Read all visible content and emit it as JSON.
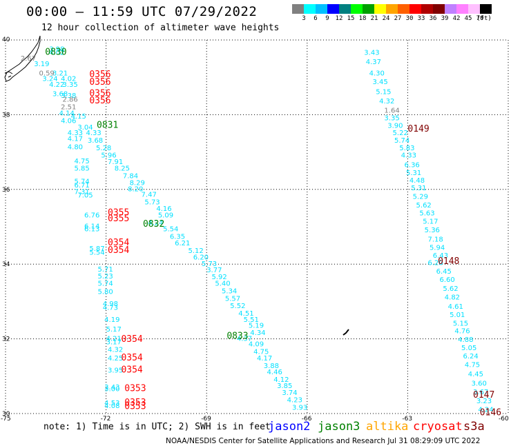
{
  "header": {
    "title": "00:00 — 11:59 UTC 07/29/2022",
    "subtitle": "12 hour collection of altimeter wave heights"
  },
  "legend": {
    "colors": [
      "#808080",
      "#00ffff",
      "#00c0ff",
      "#0000ff",
      "#008080",
      "#00ff00",
      "#00a000",
      "#ffff00",
      "#ffa500",
      "#ff6000",
      "#ff0000",
      "#b00000",
      "#800000",
      "#c080ff",
      "#ff80ff",
      "#ffc0ff",
      "#000000"
    ],
    "labels": [
      "3",
      "6",
      "9",
      "12",
      "15",
      "18",
      "21",
      "24",
      "27",
      "30",
      "33",
      "36",
      "39",
      "42",
      "45",
      "70",
      "(ft)"
    ]
  },
  "map": {
    "lat_labels": [
      "40",
      "38",
      "36",
      "34",
      "32",
      "30"
    ],
    "lon_labels": [
      "-75",
      "-72",
      "-69",
      "-66",
      "-63",
      "-60"
    ],
    "lat_range": [
      30,
      40
    ],
    "lon_range": [
      -75,
      -60
    ],
    "grid": "dotted"
  },
  "satellite_colors": {
    "jason2": "#0000ff",
    "jason3": "#008000",
    "altika": "#ffa500",
    "cryosat": "#ff0000",
    "s3a": "#800000"
  },
  "tracks": [
    {
      "sat": "jason3",
      "time": "0830",
      "lat": 39.6,
      "lon": -73.82
    },
    {
      "sat": "jason3",
      "time": "0831",
      "lat": 37.65,
      "lon": -72.28
    },
    {
      "sat": "jason3",
      "time": "0832",
      "lat": 35.0,
      "lon": -70.9
    },
    {
      "sat": "jason3",
      "time": "0833",
      "lat": 32.0,
      "lon": -68.4
    },
    {
      "sat": "cryosat",
      "time": "0356",
      "lat": 39.0,
      "lon": -72.5
    },
    {
      "sat": "cryosat",
      "time": "0356",
      "lat": 38.8,
      "lon": -72.5
    },
    {
      "sat": "cryosat",
      "time": "0356",
      "lat": 38.5,
      "lon": -72.5
    },
    {
      "sat": "cryosat",
      "time": "0356",
      "lat": 38.3,
      "lon": -72.5
    },
    {
      "sat": "cryosat",
      "time": "0355",
      "lat": 35.3,
      "lon": -71.95
    },
    {
      "sat": "cryosat",
      "time": "0355",
      "lat": 35.15,
      "lon": -71.95
    },
    {
      "sat": "cryosat",
      "time": "0354",
      "lat": 34.5,
      "lon": -71.95
    },
    {
      "sat": "cryosat",
      "time": "0354",
      "lat": 34.3,
      "lon": -71.95
    },
    {
      "sat": "cryosat",
      "time": "0354",
      "lat": 31.92,
      "lon": -71.55
    },
    {
      "sat": "cryosat",
      "time": "0354",
      "lat": 31.42,
      "lon": -71.55
    },
    {
      "sat": "cryosat",
      "time": "0354",
      "lat": 31.1,
      "lon": -71.55
    },
    {
      "sat": "cryosat",
      "time": "0353",
      "lat": 30.6,
      "lon": -71.45
    },
    {
      "sat": "cryosat",
      "time": "0353",
      "lat": 30.22,
      "lon": -71.45
    },
    {
      "sat": "cryosat",
      "time": "0353",
      "lat": 30.12,
      "lon": -71.45
    },
    {
      "sat": "s3a",
      "time": "0149",
      "lat": 37.55,
      "lon": -63.0
    },
    {
      "sat": "s3a",
      "time": "0148",
      "lat": 34.0,
      "lon": -62.1
    },
    {
      "sat": "s3a",
      "time": "0147",
      "lat": 30.42,
      "lon": -61.05
    },
    {
      "sat": "s3a",
      "time": "0146",
      "lat": 29.95,
      "lon": -60.85
    }
  ],
  "swh_points": [
    {
      "v": "3.98",
      "lat": 39.7,
      "lon": -73.7
    },
    {
      "v": "4.02",
      "lat": 39.6,
      "lon": -73.7
    },
    {
      "v": "2.67",
      "lat": 39.45,
      "lon": -74.55
    },
    {
      "v": "3.19",
      "lat": 39.3,
      "lon": -74.15
    },
    {
      "v": "0.59",
      "lat": 39.05,
      "lon": -74.0
    },
    {
      "v": "3.21",
      "lat": 39.05,
      "lon": -73.6
    },
    {
      "v": "3.24",
      "lat": 38.9,
      "lon": -73.9
    },
    {
      "v": "4.02",
      "lat": 38.9,
      "lon": -73.35
    },
    {
      "v": "4.22",
      "lat": 38.75,
      "lon": -73.7
    },
    {
      "v": "3.35",
      "lat": 38.75,
      "lon": -73.3
    },
    {
      "v": "3.68",
      "lat": 38.5,
      "lon": -73.6
    },
    {
      "v": "3.38",
      "lat": 38.45,
      "lon": -73.35
    },
    {
      "v": "2.86",
      "lat": 38.35,
      "lon": -73.3
    },
    {
      "v": "2.51",
      "lat": 38.15,
      "lon": -73.35
    },
    {
      "v": "4.14",
      "lat": 37.98,
      "lon": -73.4
    },
    {
      "v": "4.15",
      "lat": 37.9,
      "lon": -73.05
    },
    {
      "v": "4.06",
      "lat": 37.78,
      "lon": -73.35
    },
    {
      "v": "3.04",
      "lat": 37.6,
      "lon": -72.85
    },
    {
      "v": "4.33",
      "lat": 37.45,
      "lon": -73.15
    },
    {
      "v": "4.33",
      "lat": 37.45,
      "lon": -72.6
    },
    {
      "v": "4.17",
      "lat": 37.3,
      "lon": -73.15
    },
    {
      "v": "3.68",
      "lat": 37.25,
      "lon": -72.55
    },
    {
      "v": "4.80",
      "lat": 37.08,
      "lon": -73.15
    },
    {
      "v": "5.28",
      "lat": 37.05,
      "lon": -72.3
    },
    {
      "v": "5.96",
      "lat": 36.85,
      "lon": -72.15
    },
    {
      "v": "7.91",
      "lat": 36.68,
      "lon": -71.95
    },
    {
      "v": "4.75",
      "lat": 36.7,
      "lon": -72.95
    },
    {
      "v": "5.85",
      "lat": 36.5,
      "lon": -72.95
    },
    {
      "v": "8.25",
      "lat": 36.5,
      "lon": -71.75
    },
    {
      "v": "7.84",
      "lat": 36.3,
      "lon": -71.5
    },
    {
      "v": "8.29",
      "lat": 36.12,
      "lon": -71.3
    },
    {
      "v": "5.74",
      "lat": 36.15,
      "lon": -72.95
    },
    {
      "v": "6.71",
      "lat": 36.05,
      "lon": -72.95
    },
    {
      "v": "8.20",
      "lat": 35.95,
      "lon": -71.35
    },
    {
      "v": "7.31",
      "lat": 35.88,
      "lon": -72.95
    },
    {
      "v": "7.47",
      "lat": 35.8,
      "lon": -70.95
    },
    {
      "v": "7.05",
      "lat": 35.78,
      "lon": -72.85
    },
    {
      "v": "5.73",
      "lat": 35.6,
      "lon": -70.85
    },
    {
      "v": "4.16",
      "lat": 35.42,
      "lon": -70.5
    },
    {
      "v": "5.09",
      "lat": 35.25,
      "lon": -70.45
    },
    {
      "v": "6.76",
      "lat": 35.25,
      "lon": -72.65
    },
    {
      "v": "4.24",
      "lat": 35.05,
      "lon": -70.75
    },
    {
      "v": "6.14",
      "lat": 34.95,
      "lon": -72.65
    },
    {
      "v": "6.13",
      "lat": 34.88,
      "lon": -72.65
    },
    {
      "v": "5.54",
      "lat": 34.88,
      "lon": -70.3
    },
    {
      "v": "6.35",
      "lat": 34.68,
      "lon": -70.1
    },
    {
      "v": "6.21",
      "lat": 34.5,
      "lon": -69.95
    },
    {
      "v": "5.87",
      "lat": 34.35,
      "lon": -72.5
    },
    {
      "v": "5.54",
      "lat": 34.25,
      "lon": -72.5
    },
    {
      "v": "5.12",
      "lat": 34.3,
      "lon": -69.55
    },
    {
      "v": "6.20",
      "lat": 34.12,
      "lon": -69.4
    },
    {
      "v": "5.73",
      "lat": 33.95,
      "lon": -69.15
    },
    {
      "v": "3.77",
      "lat": 33.78,
      "lon": -69.0
    },
    {
      "v": "5.71",
      "lat": 33.8,
      "lon": -72.25
    },
    {
      "v": "5.92",
      "lat": 33.6,
      "lon": -68.85
    },
    {
      "v": "5.23",
      "lat": 33.62,
      "lon": -72.25
    },
    {
      "v": "5.40",
      "lat": 33.42,
      "lon": -68.75
    },
    {
      "v": "5.74",
      "lat": 33.42,
      "lon": -72.25
    },
    {
      "v": "5.34",
      "lat": 33.22,
      "lon": -68.55
    },
    {
      "v": "5.80",
      "lat": 33.2,
      "lon": -72.25
    },
    {
      "v": "5.57",
      "lat": 33.02,
      "lon": -68.45
    },
    {
      "v": "4.98",
      "lat": 32.88,
      "lon": -72.1
    },
    {
      "v": "4.73",
      "lat": 32.78,
      "lon": -72.1
    },
    {
      "v": "5.52",
      "lat": 32.82,
      "lon": -68.3
    },
    {
      "v": "4.51",
      "lat": 32.62,
      "lon": -68.05
    },
    {
      "v": "5.51",
      "lat": 32.45,
      "lon": -67.9
    },
    {
      "v": "4.19",
      "lat": 32.45,
      "lon": -72.05
    },
    {
      "v": "5.19",
      "lat": 32.3,
      "lon": -67.75
    },
    {
      "v": "5.17",
      "lat": 32.2,
      "lon": -72.0
    },
    {
      "v": "4.34",
      "lat": 32.1,
      "lon": -67.7
    },
    {
      "v": "4.21",
      "lat": 31.95,
      "lon": -72.0
    },
    {
      "v": "3.17",
      "lat": 31.85,
      "lon": -72.0
    },
    {
      "v": "4.37",
      "lat": 31.95,
      "lon": -68.1
    },
    {
      "v": "4.09",
      "lat": 31.8,
      "lon": -67.75
    },
    {
      "v": "4.75",
      "lat": 31.6,
      "lon": -67.6
    },
    {
      "v": "4.32",
      "lat": 31.65,
      "lon": -71.95
    },
    {
      "v": "4.17",
      "lat": 31.42,
      "lon": -67.5
    },
    {
      "v": "4.25",
      "lat": 31.42,
      "lon": -71.95
    },
    {
      "v": "3.88",
      "lat": 31.22,
      "lon": -67.3
    },
    {
      "v": "3.95",
      "lat": 31.1,
      "lon": -71.95
    },
    {
      "v": "4.46",
      "lat": 31.05,
      "lon": -67.2
    },
    {
      "v": "4.12",
      "lat": 30.85,
      "lon": -67.0
    },
    {
      "v": "3.85",
      "lat": 30.68,
      "lon": -66.9
    },
    {
      "v": "3.43",
      "lat": 30.65,
      "lon": -72.05
    },
    {
      "v": "3.00",
      "lat": 30.6,
      "lon": -72.05
    },
    {
      "v": "3.74",
      "lat": 30.5,
      "lon": -66.75
    },
    {
      "v": "4.53",
      "lat": 30.22,
      "lon": -72.05
    },
    {
      "v": "4.23",
      "lat": 30.3,
      "lon": -66.6
    },
    {
      "v": "4.08",
      "lat": 30.15,
      "lon": -72.05
    },
    {
      "v": "3.93",
      "lat": 30.1,
      "lon": -66.45
    },
    {
      "v": "3.43",
      "lat": 39.6,
      "lon": -64.3
    },
    {
      "v": "4.37",
      "lat": 39.35,
      "lon": -64.25
    },
    {
      "v": "4.30",
      "lat": 39.05,
      "lon": -64.15
    },
    {
      "v": "3.45",
      "lat": 38.82,
      "lon": -64.05
    },
    {
      "v": "5.15",
      "lat": 38.55,
      "lon": -63.95
    },
    {
      "v": "4.32",
      "lat": 38.3,
      "lon": -63.85
    },
    {
      "v": "1.64",
      "lat": 38.05,
      "lon": -63.7
    },
    {
      "v": "3.35",
      "lat": 37.85,
      "lon": -63.7
    },
    {
      "v": "3.90",
      "lat": 37.65,
      "lon": -63.6
    },
    {
      "v": "5.22",
      "lat": 37.45,
      "lon": -63.45
    },
    {
      "v": "5.74",
      "lat": 37.25,
      "lon": -63.4
    },
    {
      "v": "5.83",
      "lat": 37.05,
      "lon": -63.25
    },
    {
      "v": "4.33",
      "lat": 36.85,
      "lon": -63.2
    },
    {
      "v": "6.36",
      "lat": 36.6,
      "lon": -63.1
    },
    {
      "v": "5.31",
      "lat": 36.38,
      "lon": -63.05
    },
    {
      "v": "4.48",
      "lat": 36.18,
      "lon": -62.95
    },
    {
      "v": "5.31",
      "lat": 35.98,
      "lon": -62.9
    },
    {
      "v": "5.29",
      "lat": 35.75,
      "lon": -62.85
    },
    {
      "v": "5.62",
      "lat": 35.52,
      "lon": -62.75
    },
    {
      "v": "5.63",
      "lat": 35.3,
      "lon": -62.65
    },
    {
      "v": "5.17",
      "lat": 35.08,
      "lon": -62.55
    },
    {
      "v": "5.36",
      "lat": 34.85,
      "lon": -62.5
    },
    {
      "v": "7.18",
      "lat": 34.6,
      "lon": -62.4
    },
    {
      "v": "5.94",
      "lat": 34.38,
      "lon": -62.35
    },
    {
      "v": "6.43",
      "lat": 34.17,
      "lon": -62.25
    },
    {
      "v": "6.20",
      "lat": 33.98,
      "lon": -62.4
    },
    {
      "v": "6.45",
      "lat": 33.75,
      "lon": -62.15
    },
    {
      "v": "6.60",
      "lat": 33.52,
      "lon": -62.05
    },
    {
      "v": "5.62",
      "lat": 33.28,
      "lon": -61.95
    },
    {
      "v": "4.82",
      "lat": 33.05,
      "lon": -61.9
    },
    {
      "v": "4.61",
      "lat": 32.8,
      "lon": -61.8
    },
    {
      "v": "5.01",
      "lat": 32.58,
      "lon": -61.75
    },
    {
      "v": "5.15",
      "lat": 32.35,
      "lon": -61.65
    },
    {
      "v": "4.76",
      "lat": 32.15,
      "lon": -61.6
    },
    {
      "v": "4.88",
      "lat": 31.92,
      "lon": -61.5
    },
    {
      "v": "5.05",
      "lat": 31.7,
      "lon": -61.4
    },
    {
      "v": "6.24",
      "lat": 31.48,
      "lon": -61.35
    },
    {
      "v": "4.75",
      "lat": 31.25,
      "lon": -61.3
    },
    {
      "v": "4.45",
      "lat": 31.0,
      "lon": -61.2
    },
    {
      "v": "3.60",
      "lat": 30.75,
      "lon": -61.1
    },
    {
      "v": "3.67",
      "lat": 30.52,
      "lon": -61.05
    },
    {
      "v": "3.23",
      "lat": 30.28,
      "lon": -60.95
    },
    {
      "v": "4.24",
      "lat": 30.05,
      "lon": -60.9
    }
  ],
  "footer": {
    "note": "note: 1) Time is in UTC; 2) SWH is in feet",
    "satellites": [
      "jason2",
      "jason3",
      "altika",
      "cryosat",
      "s3a"
    ],
    "credit": "NOAA/NESDIS Center for Satellite Applications and Research    Jul 31 08:29:09 UTC 2022"
  }
}
